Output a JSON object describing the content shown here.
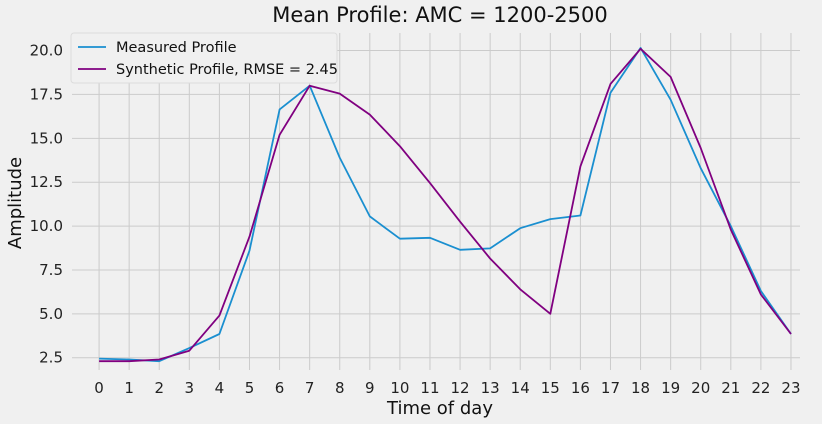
{
  "chart_data": {
    "type": "line",
    "title": "Mean Profile: AMC = 1200-2500",
    "xlabel": "Time of day",
    "ylabel": "Amplitude",
    "x": [
      0,
      1,
      2,
      3,
      4,
      5,
      6,
      7,
      8,
      9,
      10,
      11,
      12,
      13,
      14,
      15,
      16,
      17,
      18,
      19,
      20,
      21,
      22,
      23
    ],
    "xlim": [
      -0.9,
      23.3
    ],
    "ylim": [
      1.8,
      21.0
    ],
    "yticks": [
      2.5,
      5.0,
      7.5,
      10.0,
      12.5,
      15.0,
      17.5,
      20.0
    ],
    "ytick_labels": [
      "2.5",
      "5.0",
      "7.5",
      "10.0",
      "12.5",
      "15.0",
      "17.5",
      "20.0"
    ],
    "grid": true,
    "legend_position": "top-left",
    "series": [
      {
        "name": "Measured Profile",
        "color": "#1a8fd0",
        "values": [
          2.45,
          2.4,
          2.3,
          3.05,
          3.85,
          8.6,
          16.65,
          18.0,
          13.9,
          10.55,
          9.28,
          9.33,
          8.65,
          8.73,
          9.88,
          10.4,
          10.6,
          17.6,
          20.15,
          17.2,
          13.3,
          10.0,
          6.3,
          3.85
        ]
      },
      {
        "name": "Synthetic Profile, RMSE = 2.45",
        "color": "#800080",
        "values": [
          2.3,
          2.3,
          2.4,
          2.9,
          4.9,
          9.4,
          15.2,
          18.0,
          17.55,
          16.35,
          14.55,
          12.45,
          10.25,
          8.15,
          6.4,
          5.0,
          13.4,
          18.1,
          20.1,
          18.5,
          14.45,
          9.8,
          6.1,
          3.85
        ]
      }
    ]
  }
}
